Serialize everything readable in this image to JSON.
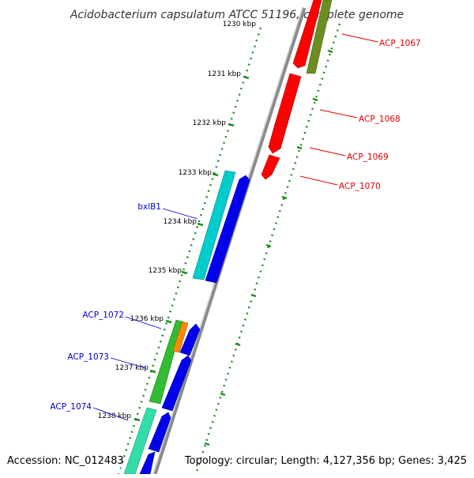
{
  "title": "Acidobacterium capsulatum ATCC 51196, complete genome",
  "accession_label": "Accession: NC_012483",
  "summary_label": "Topology: circular; Length: 4,127,356 bp; Genes: 3,425",
  "colors": {
    "backbone": "#888888",
    "tick_dots": "#228B22",
    "label_forward": "#dd0000",
    "label_reverse": "#0000cc",
    "forward_gene": "#ff0000",
    "olive_gene": "#6b8e23",
    "cyan_gene": "#00cccc",
    "blue_gene": "#0000ee",
    "green_gene": "#33bb33",
    "orange_gene": "#ff8c00",
    "teal_gene": "#33ddaa"
  },
  "ruler": [
    {
      "label": "1230 kbp"
    },
    {
      "label": "1231 kbp"
    },
    {
      "label": "1232 kbp"
    },
    {
      "label": "1233 kbp"
    },
    {
      "label": "1234 kbp"
    },
    {
      "label": "1235 kbp"
    },
    {
      "label": "1236 kbp"
    },
    {
      "label": "1237 kbp"
    },
    {
      "label": "1238 kbp"
    }
  ],
  "gene_labels": [
    {
      "name": "ACP_1067"
    },
    {
      "name": "ACP_1068"
    },
    {
      "name": "ACP_1069"
    },
    {
      "name": "ACP_1070"
    },
    {
      "name": "bxlB1"
    },
    {
      "name": "ACP_1072"
    },
    {
      "name": "ACP_1073"
    },
    {
      "name": "ACP_1074"
    }
  ]
}
